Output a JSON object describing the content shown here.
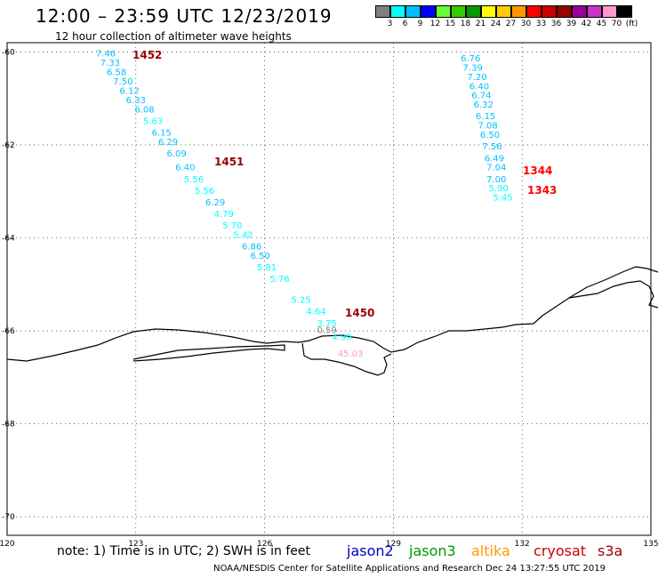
{
  "header": {
    "title": "12:00 – 23:59 UTC 12/23/2019",
    "subtitle": "12 hour collection of altimeter wave heights"
  },
  "colorbar": {
    "colors": [
      "#808080",
      "#00ffff",
      "#00bfff",
      "#0000ff",
      "#66ff33",
      "#33cc00",
      "#009900",
      "#ffff00",
      "#ffcc00",
      "#ff9900",
      "#ff0000",
      "#cc0000",
      "#990000",
      "#990099",
      "#cc33cc",
      "#ff99cc",
      "#000000"
    ],
    "labels": [
      "3",
      "6",
      "9",
      "12",
      "15",
      "18",
      "21",
      "24",
      "27",
      "30",
      "33",
      "36",
      "39",
      "42",
      "45",
      "70",
      "(ft)"
    ]
  },
  "axes": {
    "lon_ticks": [
      "120",
      "123",
      "126",
      "129",
      "132",
      "135"
    ],
    "lat_ticks": [
      "-60",
      "-62",
      "-64",
      "-66",
      "-68",
      "-70"
    ]
  },
  "tracks": [
    {
      "id": "1452",
      "label": "1452",
      "label_color": "#990000",
      "points": [
        {
          "v": "7.46",
          "lon": 122.3,
          "lat": -60.1
        },
        {
          "v": "7.33",
          "lon": 122.4,
          "lat": -60.3
        },
        {
          "v": "6.58",
          "lon": 122.55,
          "lat": -60.5
        },
        {
          "v": "7.50",
          "lon": 122.7,
          "lat": -60.7
        },
        {
          "v": "6.12",
          "lon": 122.85,
          "lat": -60.9
        },
        {
          "v": "6.33",
          "lon": 123.0,
          "lat": -61.1
        },
        {
          "v": "6.08",
          "lon": 123.2,
          "lat": -61.3
        },
        {
          "v": "5.63",
          "lon": 123.4,
          "lat": -61.55
        },
        {
          "v": "6.15",
          "lon": 123.6,
          "lat": -61.8
        },
        {
          "v": "6.29",
          "lon": 123.75,
          "lat": -62.0
        },
        {
          "v": "6.09",
          "lon": 123.95,
          "lat": -62.25
        },
        {
          "v": "6.40",
          "lon": 124.15,
          "lat": -62.55
        },
        {
          "v": "5.56",
          "lon": 124.35,
          "lat": -62.8
        },
        {
          "v": "5.56",
          "lon": 124.6,
          "lat": -63.05
        },
        {
          "v": "6.29",
          "lon": 124.85,
          "lat": -63.3
        },
        {
          "v": "4.79",
          "lon": 125.05,
          "lat": -63.55
        },
        {
          "v": "5.70",
          "lon": 125.25,
          "lat": -63.8
        },
        {
          "v": "5.42",
          "lon": 125.5,
          "lat": -64.0
        },
        {
          "v": "6.86",
          "lon": 125.7,
          "lat": -64.25
        },
        {
          "v": "6.50",
          "lon": 125.9,
          "lat": -64.45
        },
        {
          "v": "5.81",
          "lon": 126.05,
          "lat": -64.7
        },
        {
          "v": "5.76",
          "lon": 126.35,
          "lat": -64.95
        }
      ]
    },
    {
      "id": "1451",
      "label": "1451",
      "label_color": "#990000",
      "points": []
    },
    {
      "id": "1450",
      "label": "1450",
      "label_color": "#990000",
      "points": [
        {
          "v": "5.25",
          "lon": 126.85,
          "lat": -65.4
        },
        {
          "v": "4.64",
          "lon": 127.2,
          "lat": -65.65
        },
        {
          "v": "3.75",
          "lon": 127.45,
          "lat": -65.9
        },
        {
          "v": "0.59",
          "lon": 127.45,
          "lat": -66.05
        },
        {
          "v": "4.99",
          "lon": 127.8,
          "lat": -66.2
        },
        {
          "v": "45.03",
          "lon": 128.0,
          "lat": -66.55
        }
      ]
    },
    {
      "id": "1344",
      "label": "1344",
      "label_color": "#ff0000",
      "points": [
        {
          "v": "6.76",
          "lon": 130.8,
          "lat": -60.2
        },
        {
          "v": "7.39",
          "lon": 130.85,
          "lat": -60.4
        },
        {
          "v": "7.20",
          "lon": 130.95,
          "lat": -60.6
        },
        {
          "v": "6.40",
          "lon": 131.0,
          "lat": -60.8
        },
        {
          "v": "6.74",
          "lon": 131.05,
          "lat": -61.0
        },
        {
          "v": "6.32",
          "lon": 131.1,
          "lat": -61.2
        },
        {
          "v": "6.15",
          "lon": 131.15,
          "lat": -61.45
        },
        {
          "v": "7.08",
          "lon": 131.2,
          "lat": -61.65
        },
        {
          "v": "6.50",
          "lon": 131.25,
          "lat": -61.85
        },
        {
          "v": "7.56",
          "lon": 131.3,
          "lat": -62.1
        },
        {
          "v": "6.49",
          "lon": 131.35,
          "lat": -62.35
        },
        {
          "v": "7.04",
          "lon": 131.4,
          "lat": -62.55
        },
        {
          "v": "7.00",
          "lon": 131.4,
          "lat": -62.8
        }
      ]
    },
    {
      "id": "1343",
      "label": "1343",
      "label_color": "#ff0000",
      "points": [
        {
          "v": "5.90",
          "lon": 131.45,
          "lat": -63.0
        },
        {
          "v": "5.45",
          "lon": 131.55,
          "lat": -63.2
        }
      ]
    }
  ],
  "footer": {
    "note": "note: 1) Time is in UTC; 2) SWH is in feet",
    "satellites": [
      {
        "name": "jason2",
        "color": "#0000cc"
      },
      {
        "name": "jason3",
        "color": "#009900"
      },
      {
        "name": "altika",
        "color": "#ff9900"
      },
      {
        "name": "cryosat",
        "color": "#cc0000"
      },
      {
        "name": "s3a",
        "color": "#990000"
      }
    ],
    "credit": "NOAA/NESDIS Center for Satellite Applications and Research     Dec 24 13:27:55 UTC 2019"
  }
}
